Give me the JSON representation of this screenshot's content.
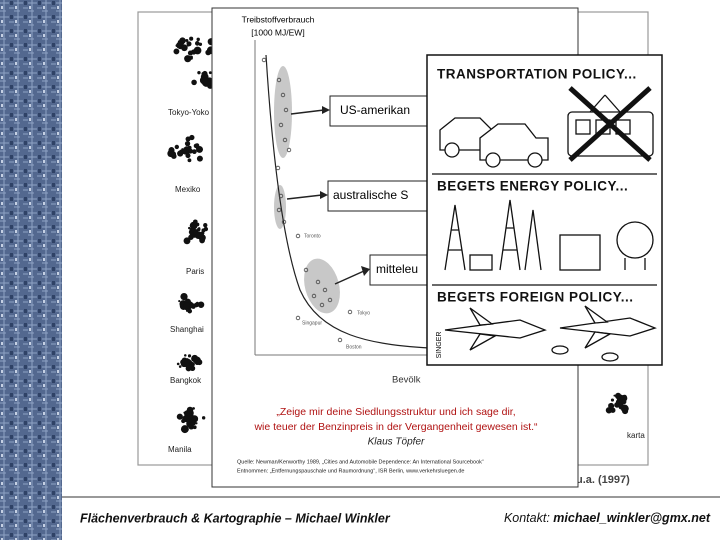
{
  "slide": {
    "map_panel": {
      "cities": [
        "Tokyo-Yoko",
        "Mexiko",
        "Paris",
        "Shanghai",
        "Bangkok",
        "Manila",
        "karta"
      ],
      "source": "u.a. (1997)"
    },
    "chart_panel": {
      "title": [
        "Treibstoffverbrauch",
        "[1000 MJ/EW]"
      ],
      "callouts": [
        "US-amerikan",
        "australische S",
        "mitteleu"
      ],
      "point_labels": [
        "Toronto",
        "Tokyo",
        "Singapur",
        "Boston"
      ],
      "x_label": "Bevölk",
      "quote": [
        "„Zeige mir deine Siedlungsstruktur und ich sage dir,",
        "wie teuer der Benzinpreis in der Vergangenheit gewesen ist.“"
      ],
      "quote_author": "Klaus Töpfer",
      "sources": [
        "Quelle: Newman/Kenworthy 1989, „Cities and Automobile Dependence: An International Sourcebook“",
        "Entnommen: „Entfernungspauschale und Raumordnung“, ISR Berlin, www.verkehrsluegen.de"
      ]
    },
    "cartoon": {
      "captions": [
        "TRANSPORTATION POLICY...",
        "BEGETS ENERGY POLICY...",
        "BEGETS FOREIGN POLICY..."
      ],
      "signature": "SINGER"
    },
    "footer": {
      "left": "Flächenverbrauch & Kartographie – Michael Winkler",
      "contact_label": "Kontakt:",
      "contact_email": "michael_winkler@gmx.net"
    }
  }
}
